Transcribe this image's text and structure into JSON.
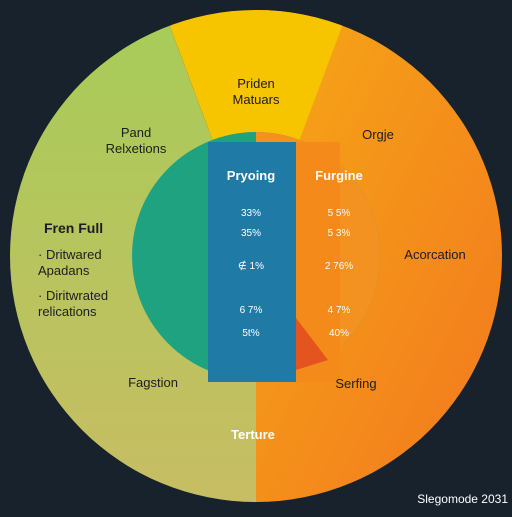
{
  "chart_data": {
    "type": "pie",
    "outer_ring": [
      {
        "label": "Priden\nMatuars",
        "color": "#f7c400"
      },
      {
        "label": "Orgje",
        "color": "#f5a017"
      },
      {
        "label": "Acorcation",
        "color": "#f58f1c"
      },
      {
        "label": "Serfing",
        "color": "#f27f20"
      },
      {
        "label": "Terture",
        "color": "#f27f20"
      },
      {
        "label": "Fagstion",
        "color": "#aec157"
      },
      {
        "label": "Pand\nRelxetions",
        "color": "#a9c75a"
      }
    ],
    "left_list": {
      "title": "Fren Full",
      "items": [
        "· Dritwared\nApadans",
        "· Diritwrated\nrelications"
      ]
    },
    "inner": {
      "columns": [
        {
          "title": "Pryoing",
          "color": "#1f7ba6",
          "values": [
            "33%",
            "35%",
            "∉ 1%",
            "6 7%",
            "5t%"
          ]
        },
        {
          "title": "Furgine",
          "color": "#f48a1a",
          "values": [
            "5 5%",
            "5 3%",
            "2 76%",
            "4 7%",
            "40%"
          ]
        }
      ],
      "left_cap_color": "#1fa27f",
      "right_cap_color": "#f39221",
      "wedge_color": "#e4541e"
    },
    "colors": {
      "background": "#17222c",
      "green": "#a7c45a",
      "orange": "#f58a1f",
      "yellow": "#f7c400"
    }
  },
  "watermark": "Slegomode 2031"
}
